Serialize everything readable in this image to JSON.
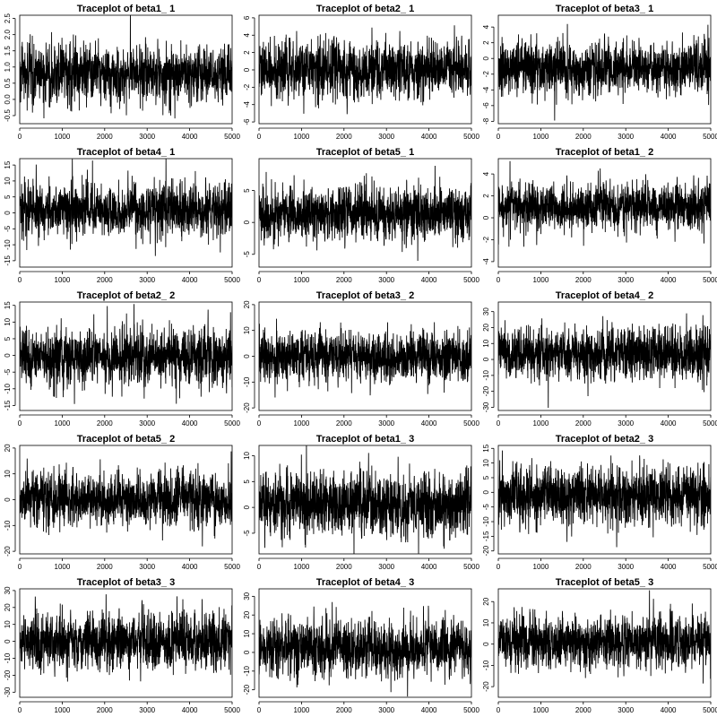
{
  "chart_data": [
    {
      "type": "line",
      "title": "Traceplot of beta1_ 1",
      "x_ticks": [
        0,
        1000,
        2000,
        3000,
        4000,
        5000
      ],
      "y_ticks": [
        -0.5,
        0.0,
        0.5,
        1.0,
        1.5,
        2.0,
        2.5
      ],
      "y_tick_labels": [
        "-0.5",
        "0.0",
        "0.5",
        "1.0",
        "1.5",
        "2.0",
        "2.5"
      ],
      "ylim": [
        -0.75,
        2.6
      ],
      "xlim": [
        0,
        5000
      ],
      "center": 0.8,
      "spread": 0.42,
      "series": [
        {
          "values": []
        }
      ]
    },
    {
      "type": "line",
      "title": "Traceplot of beta2_ 1",
      "x_ticks": [
        0,
        1000,
        2000,
        3000,
        4000,
        5000
      ],
      "y_ticks": [
        -6,
        -4,
        -2,
        0,
        2,
        4,
        6
      ],
      "y_tick_labels": [
        "-6",
        "-4",
        "-2",
        "0",
        "2",
        "4",
        "6"
      ],
      "ylim": [
        -6.2,
        6.3
      ],
      "xlim": [
        0,
        5000
      ],
      "center": 0.0,
      "spread": 1.55,
      "series": [
        {
          "values": []
        }
      ]
    },
    {
      "type": "line",
      "title": "Traceplot of beta3_ 1",
      "x_ticks": [
        0,
        1000,
        2000,
        3000,
        4000,
        5000
      ],
      "y_ticks": [
        -8,
        -6,
        -4,
        -2,
        0,
        2,
        4
      ],
      "y_tick_labels": [
        "-8",
        "-6",
        "-4",
        "-2",
        "0",
        "2",
        "4"
      ],
      "ylim": [
        -8.3,
        5.5
      ],
      "xlim": [
        0,
        5000
      ],
      "center": -1.3,
      "spread": 1.6,
      "series": [
        {
          "values": []
        }
      ]
    },
    {
      "type": "line",
      "title": "Traceplot of beta4_ 1",
      "x_ticks": [
        0,
        1000,
        2000,
        3000,
        4000,
        5000
      ],
      "y_ticks": [
        -15,
        -10,
        -5,
        0,
        5,
        10,
        15
      ],
      "y_tick_labels": [
        "-15",
        "-10",
        "-5",
        "0",
        "5",
        "10",
        "15"
      ],
      "ylim": [
        -17,
        17
      ],
      "xlim": [
        0,
        5000
      ],
      "center": 1.0,
      "spread": 4.0,
      "series": [
        {
          "values": []
        }
      ]
    },
    {
      "type": "line",
      "title": "Traceplot of beta5_ 1",
      "x_ticks": [
        0,
        1000,
        2000,
        3000,
        4000,
        5000
      ],
      "y_ticks": [
        -5,
        0,
        5
      ],
      "y_tick_labels": [
        "-5",
        "0",
        "5"
      ],
      "ylim": [
        -7,
        10
      ],
      "xlim": [
        0,
        5000
      ],
      "center": 1.3,
      "spread": 2.0,
      "series": [
        {
          "values": []
        }
      ]
    },
    {
      "type": "line",
      "title": "Traceplot of beta1_ 2",
      "x_ticks": [
        0,
        1000,
        2000,
        3000,
        4000,
        5000
      ],
      "y_ticks": [
        -4,
        -2,
        0,
        2,
        4
      ],
      "y_tick_labels": [
        "-4",
        "-2",
        "0",
        "2",
        "4"
      ],
      "ylim": [
        -4.5,
        5.4
      ],
      "xlim": [
        0,
        5000
      ],
      "center": 1.0,
      "spread": 1.05,
      "series": [
        {
          "values": []
        }
      ]
    },
    {
      "type": "line",
      "title": "Traceplot of beta2_ 2",
      "x_ticks": [
        0,
        1000,
        2000,
        3000,
        4000,
        5000
      ],
      "y_ticks": [
        -15,
        -10,
        -5,
        0,
        5,
        10,
        15
      ],
      "y_tick_labels": [
        "-15",
        "-10",
        "-5",
        "0",
        "5",
        "10",
        "15"
      ],
      "ylim": [
        -16.5,
        16
      ],
      "xlim": [
        0,
        5000
      ],
      "center": -0.5,
      "spread": 4.2,
      "series": [
        {
          "values": []
        }
      ]
    },
    {
      "type": "line",
      "title": "Traceplot of beta3_ 2",
      "x_ticks": [
        0,
        1000,
        2000,
        3000,
        4000,
        5000
      ],
      "y_ticks": [
        -20,
        -10,
        0,
        10,
        20
      ],
      "y_tick_labels": [
        "-20",
        "-10",
        "0",
        "10",
        "20"
      ],
      "ylim": [
        -21,
        21
      ],
      "xlim": [
        0,
        5000
      ],
      "center": 0.0,
      "spread": 4.8,
      "series": [
        {
          "values": []
        }
      ]
    },
    {
      "type": "line",
      "title": "Traceplot of beta4_ 2",
      "x_ticks": [
        0,
        1000,
        2000,
        3000,
        4000,
        5000
      ],
      "y_ticks": [
        -30,
        -20,
        -10,
        0,
        10,
        20,
        30
      ],
      "y_tick_labels": [
        "-30",
        "-20",
        "-10",
        "0",
        "10",
        "20",
        "30"
      ],
      "ylim": [
        -32,
        36
      ],
      "xlim": [
        0,
        5000
      ],
      "center": 3.0,
      "spread": 8.0,
      "series": [
        {
          "values": []
        }
      ]
    },
    {
      "type": "line",
      "title": "Traceplot of beta5_ 2",
      "x_ticks": [
        0,
        1000,
        2000,
        3000,
        4000,
        5000
      ],
      "y_ticks": [
        -20,
        -10,
        0,
        10,
        20
      ],
      "y_tick_labels": [
        "-20",
        "-10",
        "0",
        "10",
        "20"
      ],
      "ylim": [
        -21,
        21
      ],
      "xlim": [
        0,
        5000
      ],
      "center": 0.0,
      "spread": 5.0,
      "series": [
        {
          "values": []
        }
      ]
    },
    {
      "type": "line",
      "title": "Traceplot of beta1_ 3",
      "x_ticks": [
        0,
        1000,
        2000,
        3000,
        4000,
        5000
      ],
      "y_ticks": [
        -5,
        0,
        5,
        10
      ],
      "y_tick_labels": [
        "-5",
        "0",
        "5",
        "10"
      ],
      "ylim": [
        -9,
        12
      ],
      "xlim": [
        0,
        5000
      ],
      "center": 0.5,
      "spread": 2.9,
      "series": [
        {
          "values": []
        }
      ]
    },
    {
      "type": "line",
      "title": "Traceplot of beta2_ 3",
      "x_ticks": [
        0,
        1000,
        2000,
        3000,
        4000,
        5000
      ],
      "y_ticks": [
        -20,
        -15,
        -10,
        -5,
        0,
        5,
        10,
        15
      ],
      "y_tick_labels": [
        "-20",
        "-15",
        "-10",
        "-5",
        "0",
        "5",
        "10",
        "15"
      ],
      "ylim": [
        -21,
        16
      ],
      "xlim": [
        0,
        5000
      ],
      "center": -1.0,
      "spread": 4.8,
      "series": [
        {
          "values": []
        }
      ]
    },
    {
      "type": "line",
      "title": "Traceplot of beta3_ 3",
      "x_ticks": [
        0,
        1000,
        2000,
        3000,
        4000,
        5000
      ],
      "y_ticks": [
        -30,
        -20,
        -10,
        0,
        10,
        20,
        30
      ],
      "y_tick_labels": [
        "-30",
        "-20",
        "-10",
        "0",
        "10",
        "20",
        "30"
      ],
      "ylim": [
        -33,
        31
      ],
      "xlim": [
        0,
        5000
      ],
      "center": 0.0,
      "spread": 8.0,
      "series": [
        {
          "values": []
        }
      ]
    },
    {
      "type": "line",
      "title": "Traceplot of beta4_ 3",
      "x_ticks": [
        0,
        1000,
        2000,
        3000,
        4000,
        5000
      ],
      "y_ticks": [
        -20,
        -10,
        0,
        10,
        20,
        30
      ],
      "y_tick_labels": [
        "-20",
        "-10",
        "0",
        "10",
        "20",
        "30"
      ],
      "ylim": [
        -24,
        34
      ],
      "xlim": [
        0,
        5000
      ],
      "center": 3.0,
      "spread": 7.0,
      "series": [
        {
          "values": []
        }
      ]
    },
    {
      "type": "line",
      "title": "Traceplot of beta5_ 3",
      "x_ticks": [
        0,
        1000,
        2000,
        3000,
        4000,
        5000
      ],
      "y_ticks": [
        -20,
        -10,
        0,
        10,
        20
      ],
      "y_tick_labels": [
        "-20",
        "-10",
        "0",
        "10",
        "20"
      ],
      "ylim": [
        -25,
        26
      ],
      "xlim": [
        0,
        5000
      ],
      "center": 1.0,
      "spread": 6.0,
      "series": [
        {
          "values": []
        }
      ]
    }
  ]
}
